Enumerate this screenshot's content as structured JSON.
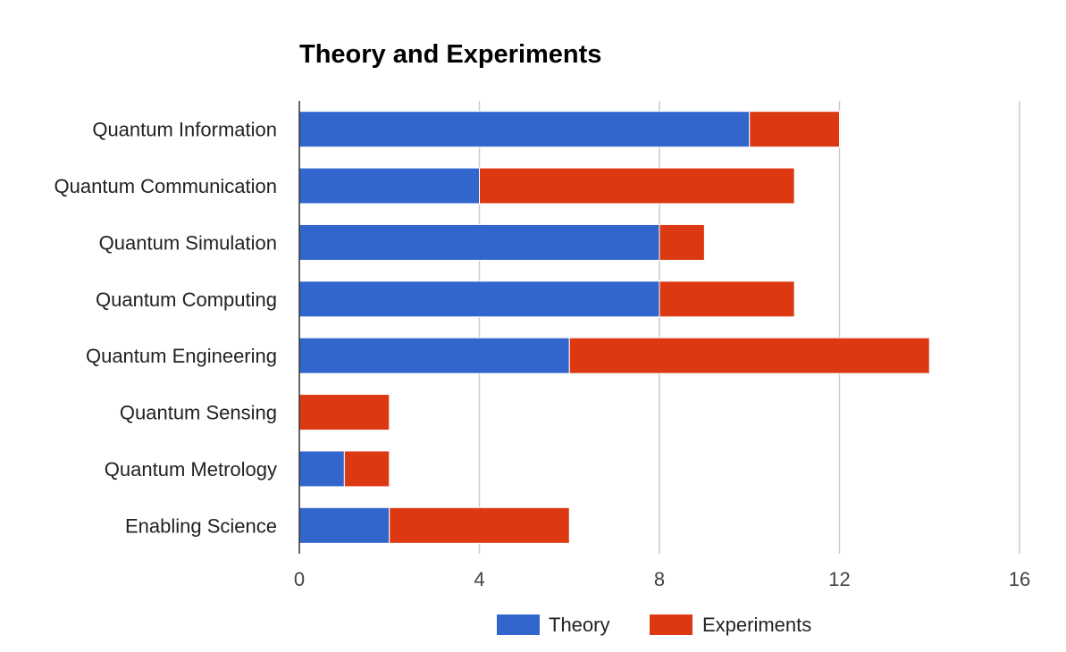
{
  "chart_data": {
    "type": "bar",
    "orientation": "horizontal",
    "stacked": true,
    "title": "Theory and Experiments",
    "xlabel": "",
    "ylabel": "",
    "categories": [
      "Quantum Information",
      "Quantum Communication",
      "Quantum Simulation",
      "Quantum Computing",
      "Quantum Engineering",
      "Quantum Sensing",
      "Quantum Metrology",
      "Enabling Science"
    ],
    "series": [
      {
        "name": "Theory",
        "color": "#3366cc",
        "values": [
          10,
          4,
          8,
          8,
          6,
          0,
          1,
          2
        ]
      },
      {
        "name": "Experiments",
        "color": "#dc3912",
        "values": [
          2,
          7,
          1,
          3,
          8,
          2,
          1,
          4
        ]
      }
    ],
    "xlim": [
      0,
      16
    ],
    "xticks": [
      "0",
      "4",
      "8",
      "12",
      "16"
    ],
    "grid": true,
    "legend_position": "bottom"
  }
}
